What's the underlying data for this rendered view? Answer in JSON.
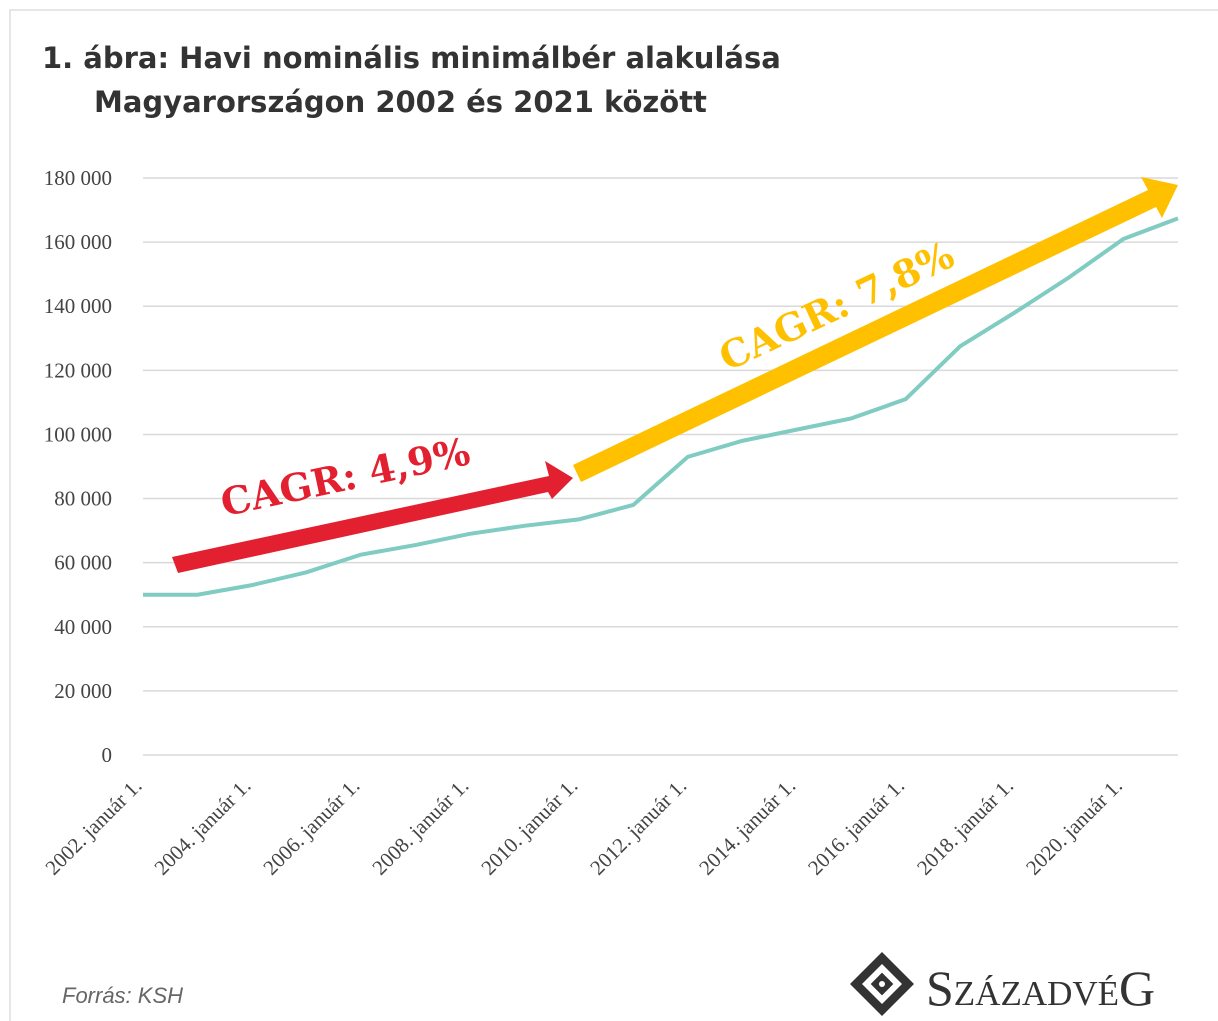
{
  "chart_data": {
    "type": "line",
    "title": [
      "1. ábra: Havi nominális minimálbér alakulása",
      "Magyarországon 2002 és 2021 között"
    ],
    "categories": [
      "2002. január 1.",
      null,
      "2004. január 1.",
      null,
      "2006. január 1.",
      null,
      "2008. január 1.",
      null,
      "2010. január 1.",
      null,
      "2012. január 1.",
      null,
      "2014. január 1.",
      null,
      "2016. január 1.",
      null,
      "2018. január 1.",
      null,
      "2020. január 1.",
      null
    ],
    "series": [
      {
        "name": "Minimálbér",
        "color": "#80cbc2",
        "values": [
          50000,
          50000,
          53000,
          57000,
          62500,
          65500,
          69000,
          71500,
          73500,
          78000,
          93000,
          98000,
          101500,
          105000,
          111000,
          127500,
          138000,
          149000,
          161000,
          167400
        ]
      }
    ],
    "ylim": [
      0,
      180000
    ],
    "yticks": [
      0,
      {
        "value": 20000,
        "label": "20 000"
      },
      {
        "value": 40000,
        "label": "40 000"
      },
      {
        "value": 60000,
        "label": "60 000"
      },
      {
        "value": 80000,
        "label": "80 000"
      },
      {
        "value": 100000,
        "label": "100 000"
      },
      {
        "value": 120000,
        "label": "120 000"
      },
      {
        "value": 140000,
        "label": "140 000"
      },
      {
        "value": 160000,
        "label": "160 000"
      },
      {
        "value": 180000,
        "label": "180 000"
      }
    ],
    "grid": true,
    "annotations": [
      {
        "text": "CAGR: 4,9%",
        "color": "#e3202f"
      },
      {
        "text": "CAGR: 7,8%",
        "color": "#ffc000"
      }
    ],
    "source": "Forrás: KSH",
    "logo": "SzázadvéG"
  }
}
